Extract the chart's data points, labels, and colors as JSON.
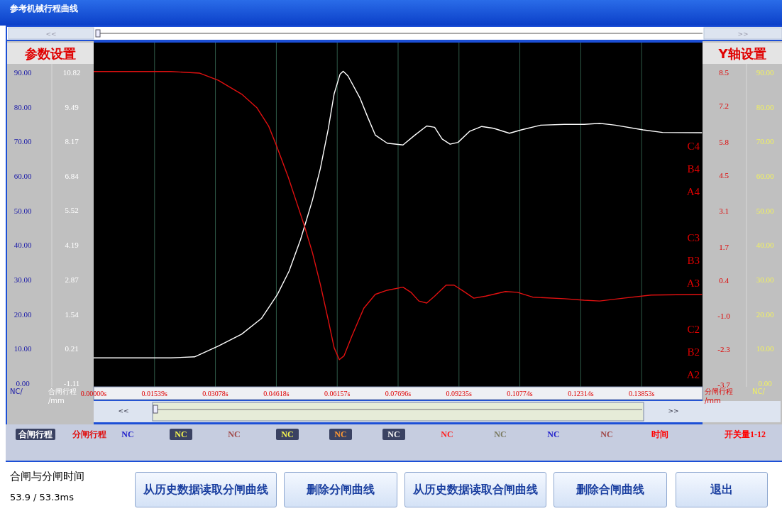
{
  "chart_data": {
    "type": "line",
    "title": "参考机械行程曲线",
    "xlim": [
      0,
      0.15392
    ],
    "xticks": [
      {
        "value": 0,
        "label": "0.00000s"
      },
      {
        "value": 0.01539,
        "label": "0.01539s"
      },
      {
        "value": 0.03078,
        "label": "0.03078s"
      },
      {
        "value": 0.04618,
        "label": "0.04618s"
      },
      {
        "value": 0.06157,
        "label": "0.06157s"
      },
      {
        "value": 0.07696,
        "label": "0.07696s"
      },
      {
        "value": 0.09235,
        "label": "0.09235s"
      },
      {
        "value": 0.10774,
        "label": "0.10774s"
      },
      {
        "value": 0.12314,
        "label": "0.12314s"
      },
      {
        "value": 0.13853,
        "label": "0.13853s"
      }
    ],
    "ylabel": "合闸行程 /mm",
    "ylim": [
      -1.25,
      11.96
    ],
    "yticks": [
      10.82,
      9.49,
      8.17,
      6.84,
      5.52,
      4.19,
      2.87,
      1.54,
      0.21,
      -1.11
    ],
    "y2label": "分闸行程 /mm",
    "y2lim": [
      -3.77,
      9.67
    ],
    "y2ticks": [
      8.5,
      7.2,
      5.8,
      4.5,
      3.1,
      1.7,
      0.4,
      {
        "value": -1.0,
        "label": "-1.0"
      },
      -2.3,
      -3.7
    ],
    "y3label": "NC/",
    "y3lim": [
      -1.0,
      98.6
    ],
    "y3ticks": [
      {
        "value": 90,
        "label": "90.00"
      },
      {
        "value": 80,
        "label": "80.00"
      },
      {
        "value": 70,
        "label": "70.00"
      },
      {
        "value": 60,
        "label": "60.00"
      },
      {
        "value": 50,
        "label": "50.00"
      },
      {
        "value": 40,
        "label": "40.00"
      },
      {
        "value": 30,
        "label": "30.00"
      },
      {
        "value": 20,
        "label": "20.00"
      },
      {
        "value": 10,
        "label": "10.00"
      },
      {
        "value": 0,
        "label": "0.00"
      }
    ],
    "grid": "x",
    "legend": "bottom",
    "marker": "none",
    "line_style": "solid",
    "series": [
      {
        "name": "合闸行程",
        "color": "#ffffff",
        "x": [
          0,
          0.0195,
          0.0255,
          0.0315,
          0.0374,
          0.0424,
          0.0464,
          0.0494,
          0.0523,
          0.0553,
          0.0573,
          0.0593,
          0.0608,
          0.0623,
          0.0631,
          0.0643,
          0.0673,
          0.0693,
          0.0712,
          0.0742,
          0.0782,
          0.0812,
          0.0842,
          0.0862,
          0.0881,
          0.0901,
          0.0921,
          0.0951,
          0.0981,
          0.1011,
          0.1051,
          0.1081,
          0.113,
          0.119,
          0.124,
          0.1279,
          0.1319,
          0.1389,
          0.1438,
          0.1538
        ],
        "values": [
          -0.14,
          -0.14,
          -0.1,
          0.31,
          0.77,
          1.37,
          2.28,
          3.19,
          4.4,
          5.91,
          7.12,
          8.64,
          10.0,
          10.75,
          10.86,
          10.68,
          9.84,
          9.09,
          8.41,
          8.1,
          8.03,
          8.41,
          8.76,
          8.71,
          8.26,
          8.06,
          8.13,
          8.56,
          8.74,
          8.67,
          8.48,
          8.61,
          8.79,
          8.82,
          8.82,
          8.86,
          8.79,
          8.61,
          8.51,
          8.5
        ]
      },
      {
        "name": "分闸行程",
        "color": "#e01010",
        "axis": "y2",
        "x": [
          0,
          0.0195,
          0.0267,
          0.0315,
          0.0374,
          0.0413,
          0.0442,
          0.0462,
          0.0492,
          0.0512,
          0.0532,
          0.0553,
          0.0573,
          0.0593,
          0.0608,
          0.0621,
          0.0633,
          0.0653,
          0.0683,
          0.0712,
          0.0742,
          0.0782,
          0.0802,
          0.0822,
          0.0842,
          0.0862,
          0.0891,
          0.0911,
          0.0931,
          0.0961,
          0.0991,
          0.1041,
          0.1071,
          0.111,
          0.119,
          0.124,
          0.1279,
          0.1339,
          0.1409,
          0.1538
        ],
        "values": [
          8.54,
          8.54,
          8.48,
          8.2,
          7.66,
          7.12,
          6.42,
          5.65,
          4.41,
          3.48,
          2.55,
          1.47,
          0.23,
          -1.16,
          -2.25,
          -2.71,
          -2.56,
          -1.78,
          -0.7,
          -0.16,
          0.0,
          0.12,
          -0.08,
          -0.42,
          -0.5,
          -0.23,
          0.2,
          0.2,
          0.0,
          -0.31,
          -0.23,
          -0.05,
          -0.08,
          -0.27,
          -0.33,
          -0.39,
          -0.42,
          -0.31,
          -0.19,
          -0.16
        ]
      }
    ],
    "annotations": [
      "C4",
      "B4",
      "A4",
      "C3",
      "B3",
      "A3",
      "C2",
      "B2",
      "A2",
      "NC",
      "NC",
      "NC",
      "NC",
      "NC",
      "NC",
      "NC",
      "NC",
      "NC",
      "NC",
      "时间",
      "开关量1-12",
      "合闸与分闸时间",
      "53.9 / 53.3ms",
      "从历史数据读取分闸曲线",
      "删除分闸曲线",
      "从历史数据读取合闸曲线",
      "删除合闸曲线",
      "退出",
      "参数设置",
      "Y轴设置",
      "<<",
      ">>",
      "<<",
      ">>"
    ]
  }
}
